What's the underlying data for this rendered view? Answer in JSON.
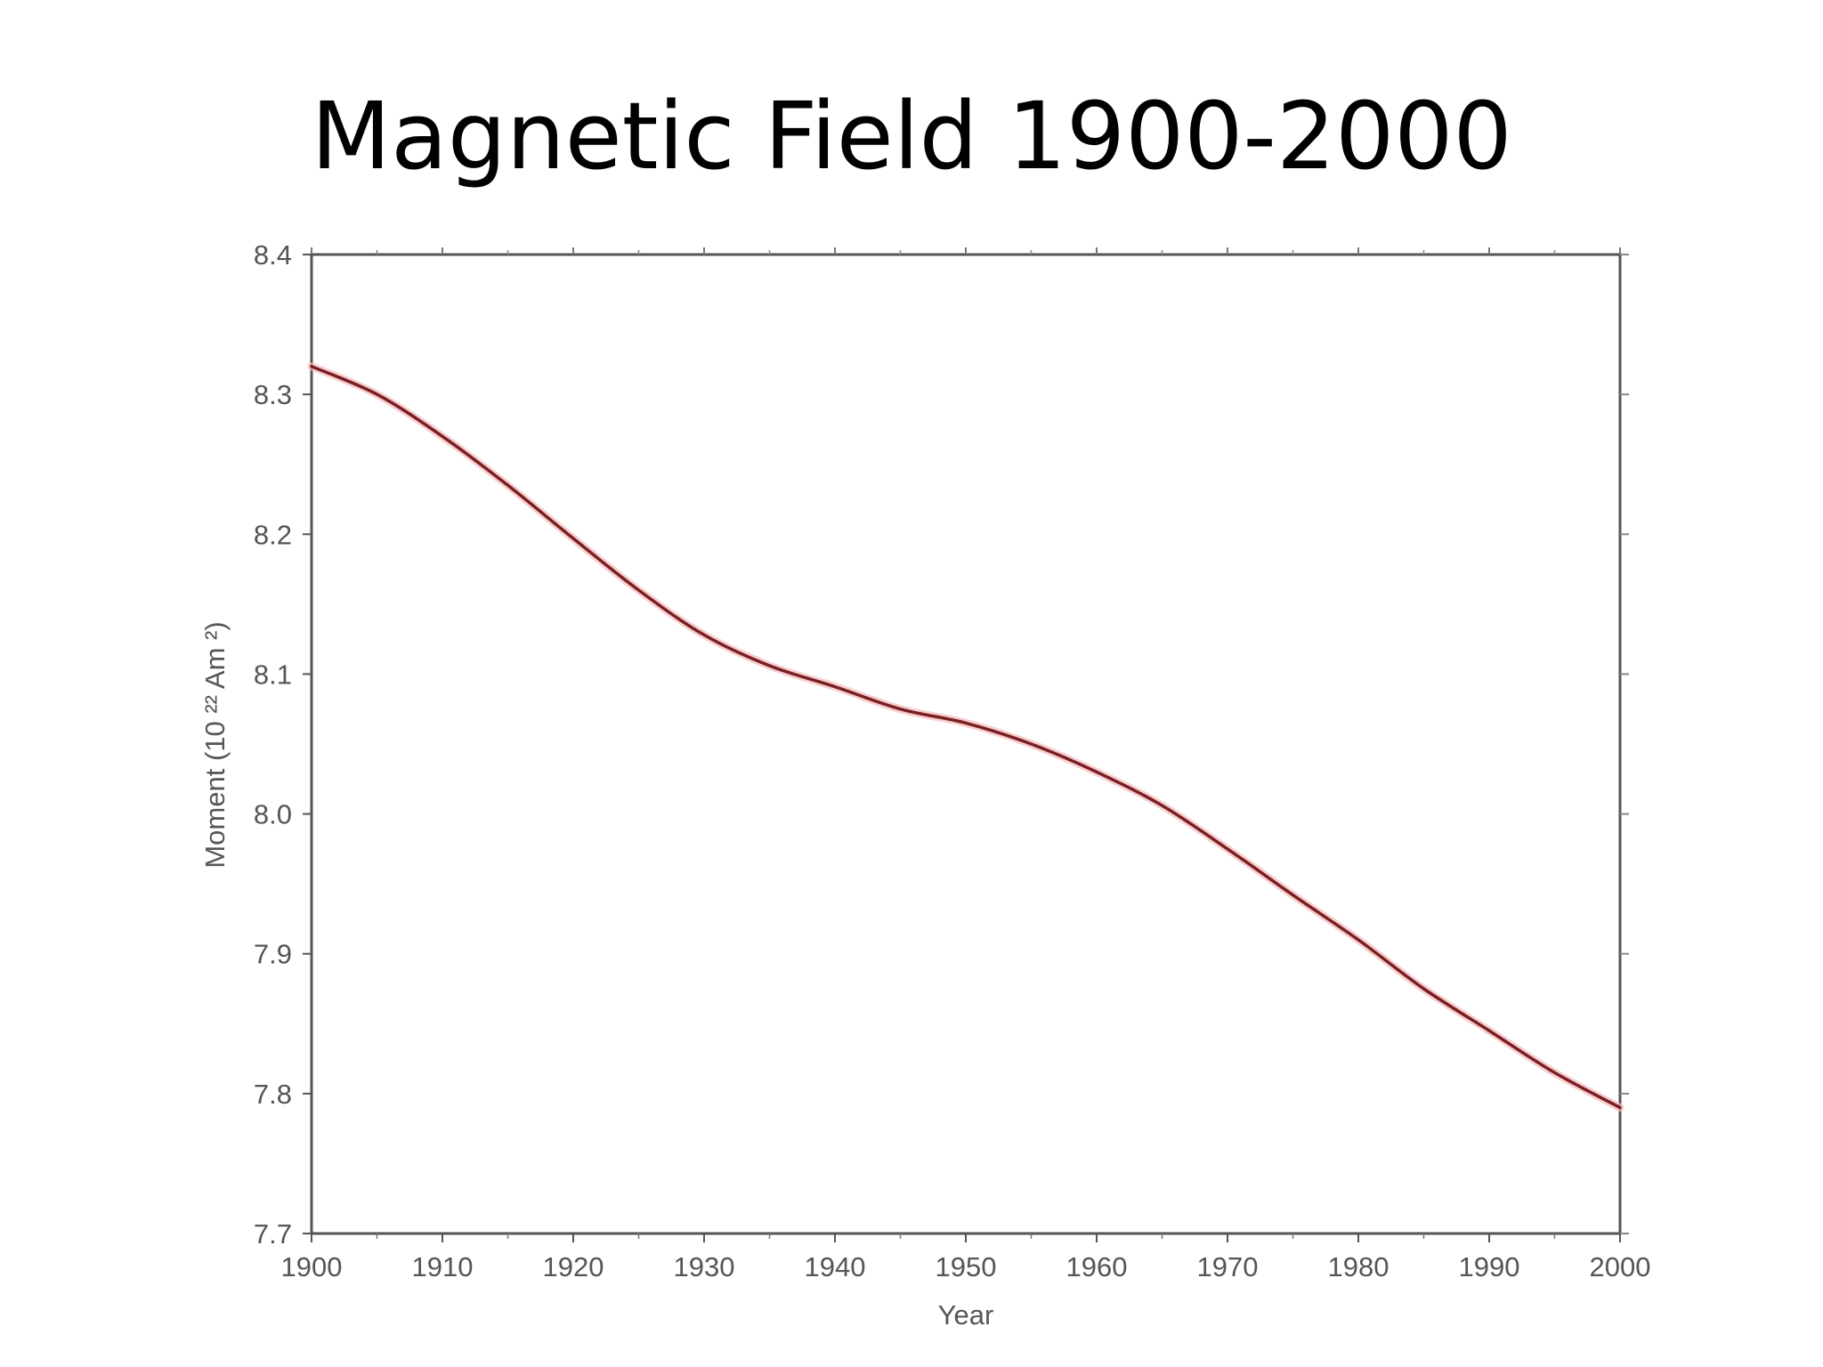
{
  "slide": {
    "title": "Magnetic Field 1900-2000"
  },
  "chart_data": {
    "type": "line",
    "xlabel": "Year",
    "ylabel": "Moment (10 ²² Am ²)",
    "xlim": [
      1900,
      2000
    ],
    "ylim": [
      7.7,
      8.4
    ],
    "x_ticks": [
      "1900",
      "1910",
      "1920",
      "1930",
      "1940",
      "1950",
      "1960",
      "1970",
      "1980",
      "1990",
      "2000"
    ],
    "y_ticks": [
      "7.7",
      "7.8",
      "7.9",
      "8.0",
      "8.1",
      "8.2",
      "8.3",
      "8.4"
    ],
    "grid": false,
    "series": [
      {
        "color": "#7a1f24",
        "x": [
          1900,
          1905,
          1910,
          1915,
          1920,
          1925,
          1930,
          1935,
          1940,
          1945,
          1950,
          1955,
          1960,
          1965,
          1970,
          1975,
          1980,
          1985,
          1990,
          1995,
          2000
        ],
        "y": [
          8.32,
          8.3,
          8.27,
          8.235,
          8.197,
          8.16,
          8.128,
          8.106,
          8.091,
          8.075,
          8.065,
          8.05,
          8.03,
          8.006,
          7.975,
          7.942,
          7.91,
          7.875,
          7.845,
          7.815,
          7.79
        ]
      }
    ]
  }
}
